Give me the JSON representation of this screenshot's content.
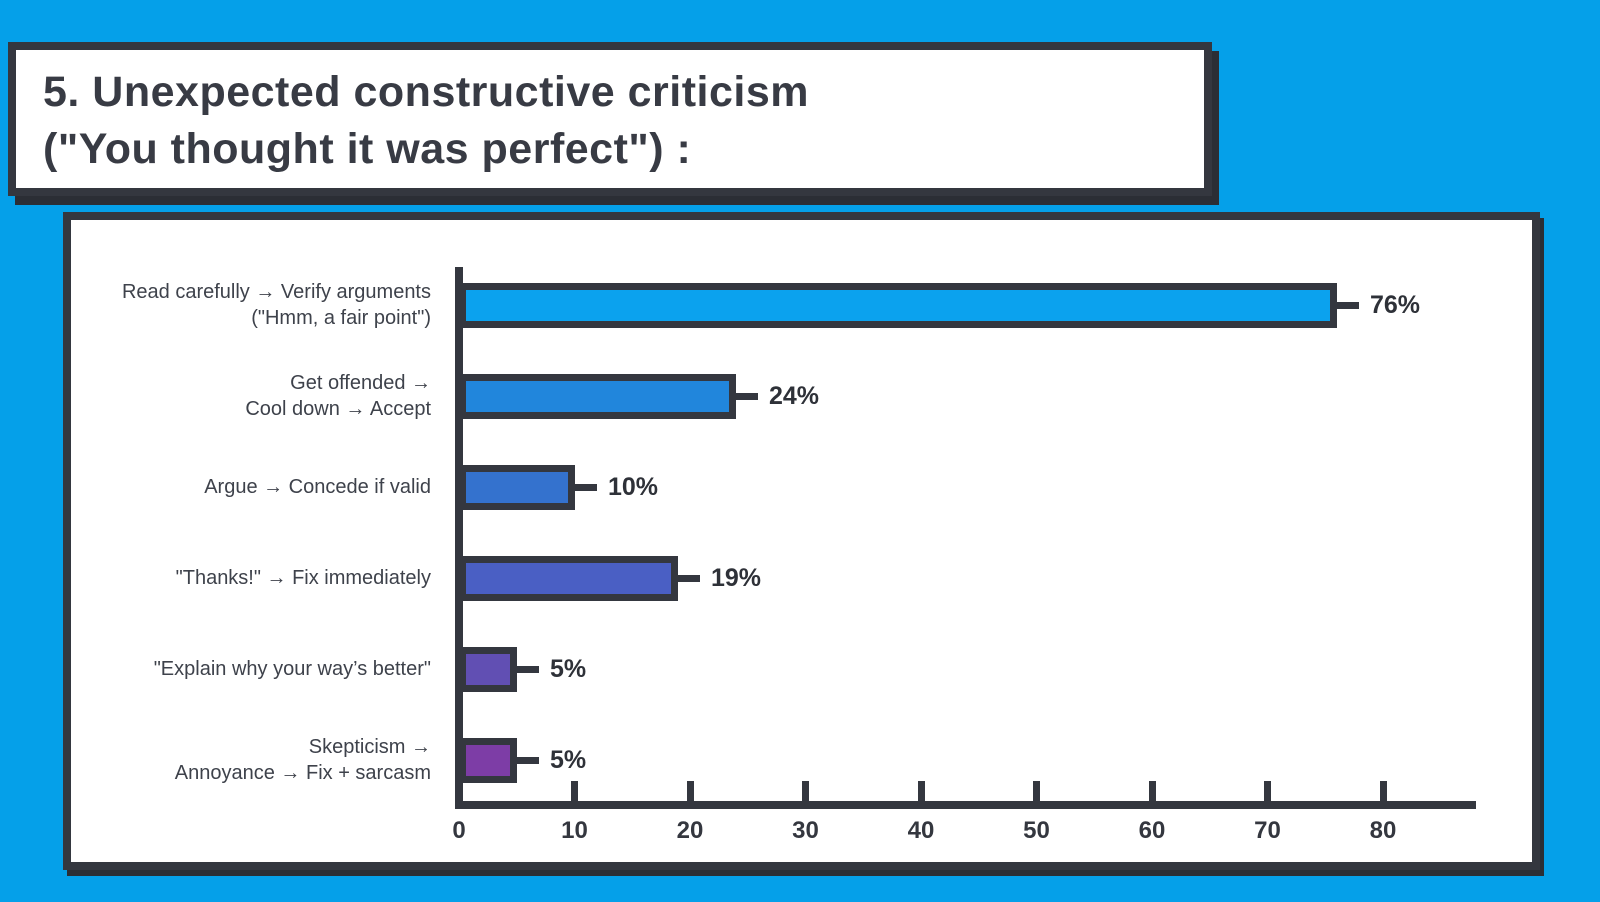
{
  "title": {
    "line1": "5. Unexpected constructive criticism",
    "line2": "(\"You thought it was perfect\") :"
  },
  "colors": {
    "background": "#05A0E9",
    "ink": "#34373F",
    "card_background": "#FFFFFF",
    "label_text": "#3E424B",
    "bar_colors": [
      "#0BA2EE",
      "#2186DC",
      "#3472CE",
      "#4A5FC4",
      "#614FB3",
      "#7D3DA6"
    ]
  },
  "chart_data": {
    "type": "bar",
    "orientation": "horizontal",
    "title": "5. Unexpected constructive criticism (\"You thought it was perfect\") :",
    "categories": [
      [
        "Read carefully → Verify arguments",
        "(\"Hmm, a fair point\")"
      ],
      [
        "Get offended →",
        "Cool down → Accept"
      ],
      [
        "Argue → Concede if valid"
      ],
      [
        "\"Thanks!\" → Fix immediately"
      ],
      [
        "\"Explain why your way’s better\""
      ],
      [
        "Skepticism →",
        "Annoyance → Fix + sarcasm"
      ]
    ],
    "values": [
      76,
      24,
      10,
      19,
      5,
      5
    ],
    "value_labels": [
      "76%",
      "24%",
      "10%",
      "19%",
      "5%",
      "5%"
    ],
    "xlabel": "",
    "ylabel": "",
    "xlim": [
      0,
      80
    ],
    "xticks": [
      0,
      10,
      20,
      30,
      40,
      50,
      60,
      70,
      80
    ],
    "grid": false,
    "legend": false
  }
}
